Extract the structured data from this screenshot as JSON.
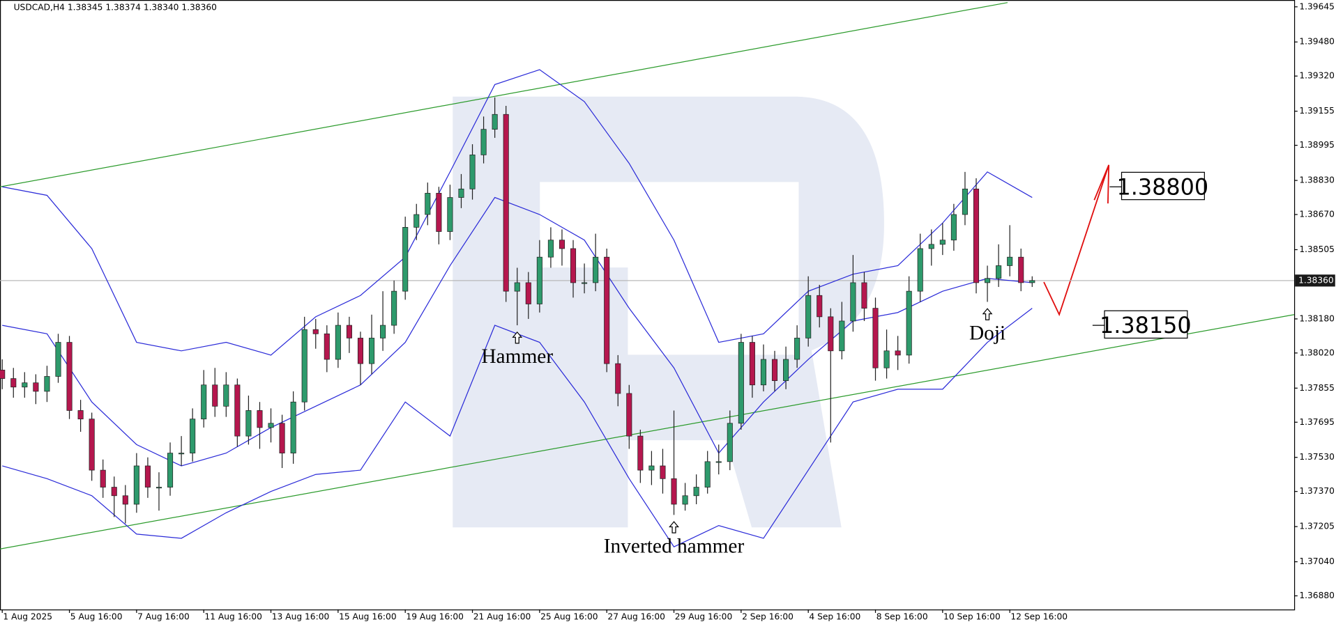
{
  "chart_data": {
    "type": "candlestick",
    "title": "USDCAD,H4  1.38345 1.38374 1.38340 1.38360",
    "categories": [
      "1 Aug 2025",
      null,
      null,
      null,
      null,
      null,
      "5 Aug 16:00",
      null,
      null,
      null,
      null,
      null,
      "7 Aug 16:00",
      null,
      null,
      null,
      null,
      null,
      "11 Aug 16:00",
      null,
      null,
      null,
      null,
      null,
      "13 Aug 16:00",
      null,
      null,
      null,
      null,
      null,
      "15 Aug 16:00",
      null,
      null,
      null,
      null,
      null,
      "19 Aug 16:00",
      null,
      null,
      null,
      null,
      null,
      "21 Aug 16:00",
      null,
      null,
      null,
      null,
      null,
      "25 Aug 16:00",
      null,
      null,
      null,
      null,
      null,
      "27 Aug 16:00",
      null,
      null,
      null,
      null,
      null,
      "29 Aug 16:00",
      null,
      null,
      null,
      null,
      null,
      "2 Sep 16:00",
      null,
      null,
      null,
      null,
      null,
      "4 Sep 16:00",
      null,
      null,
      null,
      null,
      null,
      "8 Sep 16:00",
      null,
      null,
      null,
      null,
      null,
      "10 Sep 16:00",
      null,
      null,
      null,
      null,
      null,
      "12 Sep 16:00",
      null,
      null
    ],
    "open": [
      1.3794,
      1.379,
      1.3786,
      1.3788,
      1.3784,
      1.3791,
      1.3807,
      1.3775,
      1.3771,
      1.3747,
      1.3739,
      1.3735,
      1.3731,
      1.3749,
      1.3739,
      1.3739,
      1.3755,
      1.3755,
      1.3771,
      1.3787,
      1.3777,
      1.3787,
      1.3763,
      1.3775,
      1.3767,
      1.3769,
      1.3755,
      1.3779,
      1.3813,
      1.3811,
      1.3799,
      1.3815,
      1.3809,
      1.3797,
      1.3809,
      1.3815,
      1.3831,
      1.3861,
      1.3867,
      1.3877,
      1.3859,
      1.3875,
      1.3879,
      1.3895,
      1.3907,
      1.3914,
      1.3831,
      1.3835,
      1.3825,
      1.3847,
      1.3855,
      1.3851,
      1.3835,
      1.3835,
      1.3847,
      1.3797,
      1.3783,
      1.3763,
      1.3747,
      1.3749,
      1.3743,
      1.3731,
      1.3735,
      1.3739,
      1.3751,
      1.3751,
      1.3769,
      1.3807,
      1.3787,
      1.3799,
      1.3789,
      1.3799,
      1.3809,
      1.3829,
      1.3819,
      1.3803,
      1.3817,
      1.3835,
      1.3823,
      1.3795,
      1.3803,
      1.3801,
      1.3831,
      1.3851,
      1.3853,
      1.3855,
      1.3867,
      1.3879,
      1.3835,
      1.3837,
      1.3843,
      1.3847,
      1.3835
    ],
    "high": [
      1.3799,
      1.3795,
      1.3793,
      1.3792,
      1.3796,
      1.3811,
      1.381,
      1.378,
      1.3774,
      1.3752,
      1.3744,
      1.374,
      1.3755,
      1.3753,
      1.3746,
      1.376,
      1.3763,
      1.3776,
      1.3794,
      1.3795,
      1.3793,
      1.379,
      1.3782,
      1.3779,
      1.3776,
      1.3773,
      1.3784,
      1.3819,
      1.3818,
      1.3815,
      1.3821,
      1.3819,
      1.3812,
      1.382,
      1.3831,
      1.3836,
      1.3866,
      1.3872,
      1.3882,
      1.388,
      1.3881,
      1.3886,
      1.39,
      1.3913,
      1.3922,
      1.3918,
      1.3842,
      1.384,
      1.3855,
      1.3861,
      1.386,
      1.3855,
      1.3844,
      1.3858,
      1.3851,
      1.3801,
      1.3787,
      1.3766,
      1.3756,
      1.3757,
      1.3775,
      1.3741,
      1.3745,
      1.3756,
      1.3759,
      1.3775,
      1.3811,
      1.381,
      1.3806,
      1.3803,
      1.3805,
      1.3815,
      1.3838,
      1.3834,
      1.3823,
      1.3826,
      1.3848,
      1.384,
      1.3828,
      1.3813,
      1.381,
      1.3838,
      1.3858,
      1.386,
      1.3863,
      1.3872,
      1.3887,
      1.3884,
      1.3843,
      1.3853,
      1.3862,
      1.3851,
      1.3838
    ],
    "low": [
      1.3785,
      1.3781,
      1.3781,
      1.3778,
      1.3779,
      1.3788,
      1.3771,
      1.3765,
      1.3742,
      1.3734,
      1.3725,
      1.3722,
      1.3727,
      1.3734,
      1.3728,
      1.3735,
      1.3749,
      1.3751,
      1.3767,
      1.3772,
      1.3772,
      1.3758,
      1.3759,
      1.3757,
      1.376,
      1.3748,
      1.375,
      1.3775,
      1.3804,
      1.3793,
      1.3795,
      1.3802,
      1.3787,
      1.3792,
      1.3803,
      1.3811,
      1.3827,
      1.3855,
      1.3862,
      1.3853,
      1.3855,
      1.387,
      1.3874,
      1.3891,
      1.3903,
      1.3826,
      1.3815,
      1.3818,
      1.3821,
      1.3842,
      1.3843,
      1.3828,
      1.383,
      1.3831,
      1.3793,
      1.3777,
      1.3757,
      1.3741,
      1.374,
      1.3736,
      1.3726,
      1.3728,
      1.3731,
      1.3736,
      1.3745,
      1.3747,
      1.3766,
      1.3781,
      1.3784,
      1.3784,
      1.3785,
      1.3795,
      1.3805,
      1.3814,
      1.376,
      1.3799,
      1.3812,
      1.3817,
      1.3789,
      1.379,
      1.3794,
      1.3797,
      1.3826,
      1.3843,
      1.3848,
      1.385,
      1.3862,
      1.383,
      1.3826,
      1.3833,
      1.3838,
      1.3831,
      1.3833
    ],
    "close": [
      1.379,
      1.3786,
      1.3788,
      1.3784,
      1.3791,
      1.3807,
      1.3775,
      1.3771,
      1.3747,
      1.3739,
      1.3735,
      1.3731,
      1.3749,
      1.3739,
      1.3739,
      1.3755,
      1.3755,
      1.3771,
      1.3787,
      1.3777,
      1.3787,
      1.3763,
      1.3775,
      1.3767,
      1.3769,
      1.3755,
      1.3779,
      1.3813,
      1.3811,
      1.3799,
      1.3815,
      1.3809,
      1.3797,
      1.3809,
      1.3815,
      1.3831,
      1.3861,
      1.3867,
      1.3877,
      1.3859,
      1.3875,
      1.3879,
      1.3895,
      1.3907,
      1.3914,
      1.3831,
      1.3835,
      1.3825,
      1.3847,
      1.3855,
      1.3851,
      1.3835,
      1.3835,
      1.3847,
      1.3797,
      1.3783,
      1.3763,
      1.3747,
      1.3749,
      1.3743,
      1.3731,
      1.3735,
      1.3739,
      1.3751,
      1.3751,
      1.3769,
      1.3807,
      1.3787,
      1.3799,
      1.3789,
      1.3799,
      1.3809,
      1.3829,
      1.3819,
      1.3803,
      1.3817,
      1.3835,
      1.3823,
      1.3795,
      1.3803,
      1.3801,
      1.3831,
      1.3851,
      1.3853,
      1.3855,
      1.3867,
      1.3879,
      1.3835,
      1.3837,
      1.3843,
      1.3847,
      1.3835,
      1.3836
    ],
    "up_color": "#2e9a6c",
    "down_color": "#b5174e",
    "band_color": "#2a2ad8",
    "band_x": [
      0,
      4,
      8,
      12,
      16,
      20,
      24,
      28,
      32,
      36,
      40,
      44,
      48,
      52,
      56,
      60,
      64,
      68,
      72,
      76,
      80,
      84,
      88,
      92
    ],
    "bands": [
      [
        1.388,
        1.3876,
        1.3851,
        1.3807,
        1.3803,
        1.3807,
        1.3801,
        1.3819,
        1.3829,
        1.3847,
        1.3887,
        1.3928,
        1.3935,
        1.392,
        1.3891,
        1.3855,
        1.3807,
        1.3811,
        1.3831,
        1.3839,
        1.3843,
        1.3863,
        1.3887,
        1.3875
      ],
      [
        1.3815,
        1.3811,
        1.3779,
        1.3759,
        1.3749,
        1.3755,
        1.3767,
        1.3777,
        1.3787,
        1.3807,
        1.3843,
        1.3875,
        1.3867,
        1.3855,
        1.3823,
        1.3795,
        1.3755,
        1.3779,
        1.3799,
        1.3817,
        1.3821,
        1.3831,
        1.3837,
        1.3835
      ],
      [
        1.3749,
        1.3743,
        1.3735,
        1.3717,
        1.3715,
        1.3727,
        1.3737,
        1.3745,
        1.3747,
        1.3779,
        1.3763,
        1.3815,
        1.3807,
        1.3779,
        1.3743,
        1.3711,
        1.3721,
        1.3715,
        1.3747,
        1.3779,
        1.3785,
        1.3785,
        1.3807,
        1.3823
      ]
    ],
    "channel_color": "#2a9a2a",
    "channels": [
      {
        "x": [
          -0.2,
          89.8
        ],
        "values": [
          1.388,
          1.39665
        ]
      },
      {
        "x": [
          -0.2,
          115.4
        ],
        "values": [
          1.371,
          1.382
        ]
      }
    ],
    "levels": [
      {
        "label": "1.38800",
        "value": 1.388
      },
      {
        "label": "1.38150",
        "value": 1.3815
      }
    ],
    "last": {
      "value": 1.3836,
      "label": "1.38360"
    },
    "annotations": [
      {
        "text": "Hammer",
        "x": 46
      },
      {
        "text": "Inverted hammer",
        "x": 60
      },
      {
        "text": "Doji",
        "x": 88
      }
    ],
    "xlim": [
      -0.2,
      115.4
    ],
    "ylim": [
      1.36816,
      1.39677
    ],
    "yticks": [
      1.39645,
      {
        "value": 1.3948,
        "label": "1.39480"
      },
      {
        "value": 1.3932,
        "label": "1.39320"
      },
      1.39155,
      1.38995,
      {
        "value": 1.3883,
        "label": "1.38830"
      },
      {
        "value": 1.3867,
        "label": "1.38670"
      },
      1.38505,
      {
        "value": 1.3818,
        "label": "1.38180"
      },
      {
        "value": 1.3802,
        "label": "1.38020"
      },
      1.37855,
      1.37695,
      {
        "value": 1.3753,
        "label": "1.37530"
      },
      {
        "value": 1.3737,
        "label": "1.37370"
      },
      1.37205,
      {
        "value": 1.3704,
        "label": "1.37040"
      },
      {
        "value": 1.3688,
        "label": "1.36880"
      }
    ]
  }
}
